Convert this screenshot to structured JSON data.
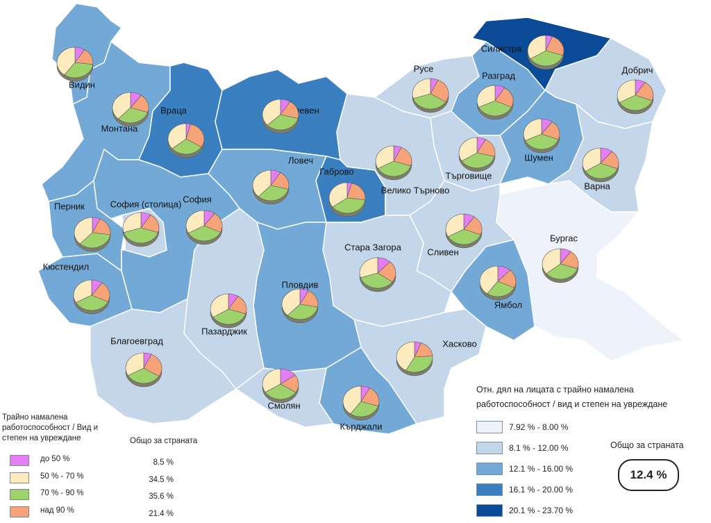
{
  "regions": [
    {
      "name": "Видин",
      "color": "#72a9d6",
      "pie": [
        9,
        40,
        33,
        18
      ]
    },
    {
      "name": "Монтана",
      "color": "#72a9d6",
      "pie": [
        10,
        38,
        32,
        20
      ]
    },
    {
      "name": "Враца",
      "color": "#3a7fc0",
      "pie": [
        4,
        36,
        30,
        30
      ]
    },
    {
      "name": "Плевен",
      "color": "#3a7fc0",
      "pie": [
        9,
        37,
        34,
        20
      ]
    },
    {
      "name": "Ловеч",
      "color": "#72a9d6",
      "pie": [
        9,
        38,
        33,
        20
      ]
    },
    {
      "name": "Габрово",
      "color": "#3a7fc0",
      "pie": [
        4,
        35,
        38,
        23
      ]
    },
    {
      "name": "Велико Търново",
      "color": "#c3d6ea",
      "pie": [
        7,
        33,
        37,
        23
      ]
    },
    {
      "name": "Русе",
      "color": "#c3d6ea",
      "pie": [
        7,
        30,
        36,
        27
      ]
    },
    {
      "name": "Разград",
      "color": "#72a9d6",
      "pie": [
        9,
        32,
        36,
        23
      ]
    },
    {
      "name": "Силистра",
      "color": "#0b4a96",
      "pie": [
        6,
        34,
        36,
        24
      ]
    },
    {
      "name": "Добрич",
      "color": "#c3d6ea",
      "pie": [
        9,
        33,
        36,
        22
      ]
    },
    {
      "name": "Търговище",
      "color": "#c3d6ea",
      "pie": [
        8,
        34,
        37,
        21
      ]
    },
    {
      "name": "Шумен",
      "color": "#72a9d6",
      "pie": [
        10,
        32,
        37,
        21
      ]
    },
    {
      "name": "Варна",
      "color": "#c3d6ea",
      "pie": [
        11,
        34,
        35,
        20
      ]
    },
    {
      "name": "Бургас",
      "color": "#eef3fb",
      "pie": [
        10,
        36,
        34,
        20
      ]
    },
    {
      "name": "Ямбол",
      "color": "#72a9d6",
      "pie": [
        12,
        40,
        28,
        20
      ]
    },
    {
      "name": "Сливен",
      "color": "#c3d6ea",
      "pie": [
        10,
        33,
        36,
        21
      ]
    },
    {
      "name": "Стара Загора",
      "color": "#c3d6ea",
      "pie": [
        12,
        30,
        35,
        23
      ]
    },
    {
      "name": "Хасково",
      "color": "#c3d6ea",
      "pie": [
        6,
        42,
        34,
        18
      ]
    },
    {
      "name": "Кърджали",
      "color": "#72a9d6",
      "pie": [
        8,
        40,
        30,
        22
      ]
    },
    {
      "name": "Смолян",
      "color": "#c3d6ea",
      "pie": [
        15,
        34,
        32,
        19
      ]
    },
    {
      "name": "Пловдив",
      "color": "#72a9d6",
      "pie": [
        8,
        38,
        34,
        20
      ]
    },
    {
      "name": "Пазарджик",
      "color": "#c3d6ea",
      "pie": [
        9,
        34,
        36,
        21
      ]
    },
    {
      "name": "Благоевград",
      "color": "#c3d6ea",
      "pie": [
        7,
        33,
        33,
        27
      ]
    },
    {
      "name": "Кюстендил",
      "color": "#72a9d6",
      "pie": [
        10,
        33,
        35,
        22
      ]
    },
    {
      "name": "Перник",
      "color": "#72a9d6",
      "pie": [
        7,
        38,
        35,
        20
      ]
    },
    {
      "name": "София (столица)",
      "color": "#c3d6ea",
      "pie": [
        9,
        30,
        40,
        21
      ]
    },
    {
      "name": "София",
      "color": "#72a9d6",
      "pie": [
        10,
        33,
        35,
        22
      ]
    }
  ],
  "pie_legend": {
    "title": "Трайно намалена работоспособност / Вид и степен на увреждане",
    "total_title": "Общо за страната",
    "items": [
      {
        "label": "до 50 %",
        "color": "#e37ff2",
        "total": "8.5 %"
      },
      {
        "label": "50 % - 70 %",
        "color": "#fdebc0",
        "total": "34.5 %"
      },
      {
        "label": "70 % - 90 %",
        "color": "#9ed26a",
        "total": "35.6 %"
      },
      {
        "label": "над 90 %",
        "color": "#f7a37a",
        "total": "21.4 %"
      }
    ]
  },
  "class_legend": {
    "title": "Отн. дял на лицата с трайно намалена работоспособност / вид и степен на увреждане",
    "items": [
      {
        "label": "7.92 % - 8.00 %",
        "color": "#eef3fb"
      },
      {
        "label": "8.1 % - 12.00 %",
        "color": "#c3d6ea"
      },
      {
        "label": "12.1 % - 16.00 %",
        "color": "#72a9d6"
      },
      {
        "label": "16.1 % - 20.00 %",
        "color": "#3a7fc0"
      },
      {
        "label": "20.1 % - 23.70 %",
        "color": "#0b4a96"
      }
    ],
    "total_title": "Общо за страната",
    "total": "12.4 %"
  }
}
